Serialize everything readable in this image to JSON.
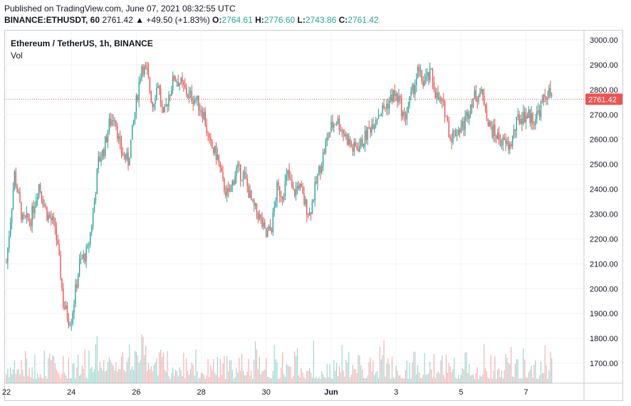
{
  "header": {
    "published": "Published on TradingView.com, June 07, 2021 08:32:55 UTC",
    "symbol": "BINANCE:ETHUSDT, 60",
    "last": "2761.42",
    "change": "▲ +49.50 (+1.83%)",
    "o_label": "O:",
    "o": "2764.61",
    "h_label": "H:",
    "h": "2776.60",
    "l_label": "L:",
    "l": "2743.86",
    "c_label": "C:",
    "c": "2761.42"
  },
  "legend": {
    "title": "Ethereum / TetherUS, 1h, BINANCE",
    "vol": "Vol"
  },
  "colors": {
    "up": "#26a69a",
    "down": "#ef5350",
    "grid": "#f0f3fa",
    "axis_text": "#131722"
  },
  "chart_data": {
    "type": "candlestick",
    "title": "Ethereum / TetherUS, 1h, BINANCE",
    "ylim": [
      1620,
      3040
    ],
    "y_ticks": [
      "3000.00",
      "2900.00",
      "2800.00",
      "2700.00",
      "2600.00",
      "2500.00",
      "2400.00",
      "2300.00",
      "2200.00",
      "2100.00",
      "2000.00",
      "1900.00",
      "1800.00",
      "1700.00"
    ],
    "x_ticks": [
      "22",
      "24",
      "26",
      "28",
      "30",
      "Jun",
      "3",
      "5",
      "7"
    ],
    "x_tick_index": [
      0,
      48,
      96,
      144,
      192,
      240,
      288,
      336,
      384
    ],
    "last_price": 2761.42,
    "last_price_label": "2761.42",
    "close_path": [
      [
        0,
        2105
      ],
      [
        6,
        2460
      ],
      [
        12,
        2270
      ],
      [
        18,
        2280
      ],
      [
        24,
        2420
      ],
      [
        30,
        2300
      ],
      [
        36,
        2250
      ],
      [
        40,
        2060
      ],
      [
        42,
        1940
      ],
      [
        46,
        1880
      ],
      [
        48,
        1880
      ],
      [
        54,
        2100
      ],
      [
        60,
        2150
      ],
      [
        64,
        2300
      ],
      [
        68,
        2510
      ],
      [
        72,
        2560
      ],
      [
        76,
        2660
      ],
      [
        80,
        2700
      ],
      [
        84,
        2560
      ],
      [
        90,
        2510
      ],
      [
        96,
        2750
      ],
      [
        100,
        2900
      ],
      [
        104,
        2860
      ],
      [
        108,
        2740
      ],
      [
        112,
        2830
      ],
      [
        116,
        2680
      ],
      [
        120,
        2780
      ],
      [
        124,
        2850
      ],
      [
        128,
        2830
      ],
      [
        134,
        2780
      ],
      [
        140,
        2760
      ],
      [
        146,
        2700
      ],
      [
        150,
        2580
      ],
      [
        156,
        2530
      ],
      [
        160,
        2420
      ],
      [
        164,
        2370
      ],
      [
        170,
        2480
      ],
      [
        176,
        2450
      ],
      [
        182,
        2330
      ],
      [
        186,
        2300
      ],
      [
        192,
        2210
      ],
      [
        196,
        2250
      ],
      [
        200,
        2400
      ],
      [
        204,
        2380
      ],
      [
        208,
        2460
      ],
      [
        212,
        2380
      ],
      [
        216,
        2420
      ],
      [
        220,
        2350
      ],
      [
        224,
        2300
      ],
      [
        230,
        2450
      ],
      [
        236,
        2580
      ],
      [
        240,
        2650
      ],
      [
        244,
        2680
      ],
      [
        250,
        2620
      ],
      [
        256,
        2560
      ],
      [
        262,
        2580
      ],
      [
        268,
        2640
      ],
      [
        274,
        2700
      ],
      [
        280,
        2730
      ],
      [
        286,
        2780
      ],
      [
        290,
        2760
      ],
      [
        294,
        2680
      ],
      [
        300,
        2790
      ],
      [
        304,
        2870
      ],
      [
        308,
        2830
      ],
      [
        314,
        2860
      ],
      [
        318,
        2770
      ],
      [
        324,
        2720
      ],
      [
        328,
        2610
      ],
      [
        332,
        2630
      ],
      [
        338,
        2660
      ],
      [
        344,
        2760
      ],
      [
        350,
        2790
      ],
      [
        354,
        2740
      ],
      [
        356,
        2660
      ],
      [
        360,
        2630
      ],
      [
        366,
        2590
      ],
      [
        372,
        2570
      ],
      [
        378,
        2680
      ],
      [
        384,
        2700
      ],
      [
        390,
        2680
      ],
      [
        394,
        2720
      ],
      [
        400,
        2790
      ],
      [
        404,
        2760
      ]
    ],
    "n_candles": 404,
    "volume_note": "volume histogram along chart bottom"
  }
}
